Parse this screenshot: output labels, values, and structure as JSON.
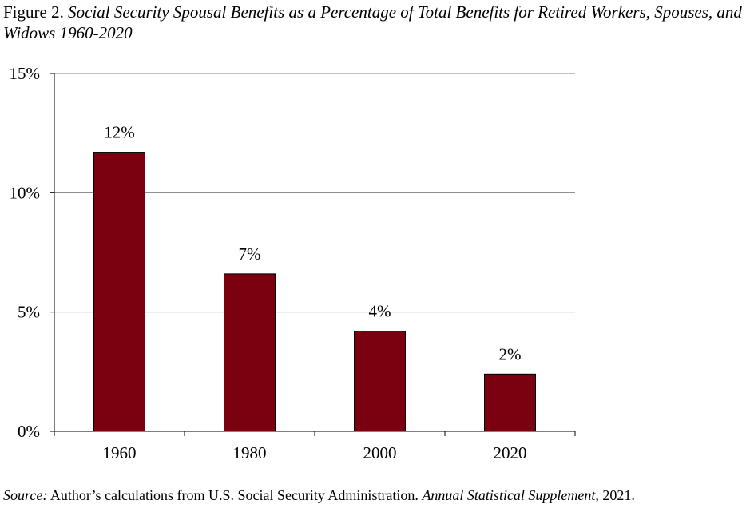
{
  "figure": {
    "prefix": "Figure 2.",
    "title": "Social Security Spousal Benefits as a Percentage of Total Benefits for Retired Workers, Spouses, and Widows 1960-2020"
  },
  "chart_data": {
    "type": "bar",
    "categories": [
      "1960",
      "1980",
      "2000",
      "2020"
    ],
    "values": [
      11.7,
      6.6,
      4.2,
      2.4
    ],
    "data_labels": [
      "12%",
      "7%",
      "4%",
      "2%"
    ],
    "ylim": [
      0,
      15
    ],
    "yticks": [
      0,
      5,
      10,
      15
    ],
    "ytick_labels": [
      "0%",
      "5%",
      "10%",
      "15%"
    ],
    "xlabel": "",
    "ylabel": "",
    "grid": true,
    "bar_color": "#7b0010"
  },
  "source": {
    "label": "Source:",
    "text": " Author’s calculations from U.S. Social Security Administration. ",
    "publication": "Annual Statistical Supplement",
    "suffix": ", 2021."
  }
}
